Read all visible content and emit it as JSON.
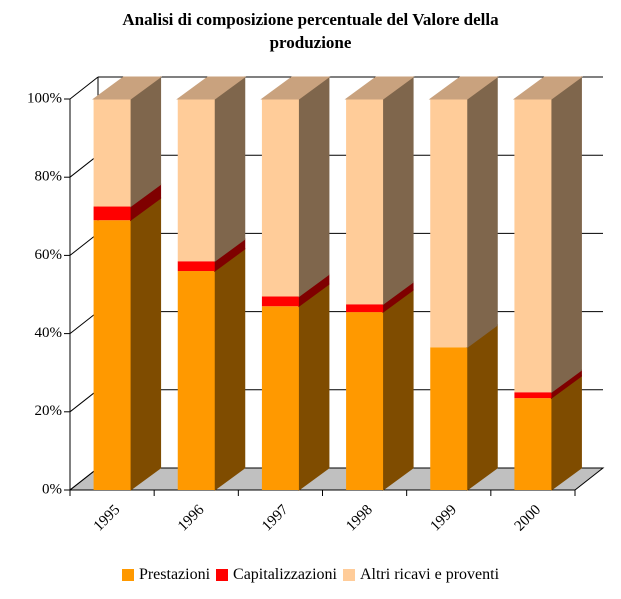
{
  "chart_data": {
    "type": "bar3d_stacked",
    "title": "Analisi di composizione percentuale del Valore della produzione",
    "categories": [
      "1995",
      "1996",
      "1997",
      "1998",
      "1999",
      "2000"
    ],
    "series": [
      {
        "name": "Prestazioni",
        "color": "#ff9900",
        "side_color": "#7f4c00",
        "values": [
          69,
          56,
          47,
          45.5,
          36.5,
          23.5
        ]
      },
      {
        "name": "Capitalizzazioni",
        "color": "#ff0000",
        "side_color": "#7f0000",
        "values": [
          3.5,
          2.5,
          2.5,
          2,
          0,
          1.5
        ]
      },
      {
        "name": "Altri ricavi e proventi",
        "color": "#ffcc99",
        "side_color": "#7f664c",
        "values": [
          27.5,
          41.5,
          50.5,
          52.5,
          63.5,
          75
        ]
      }
    ],
    "ylim": [
      0,
      100
    ],
    "yticks": [
      {
        "value": 0,
        "label": "0%"
      },
      {
        "value": 20,
        "label": "20%"
      },
      {
        "value": 40,
        "label": "40%"
      },
      {
        "value": 60,
        "label": "60%"
      },
      {
        "value": 80,
        "label": "80%"
      },
      {
        "value": 100,
        "label": "100%"
      }
    ],
    "grid": true,
    "legend": "bottom"
  }
}
